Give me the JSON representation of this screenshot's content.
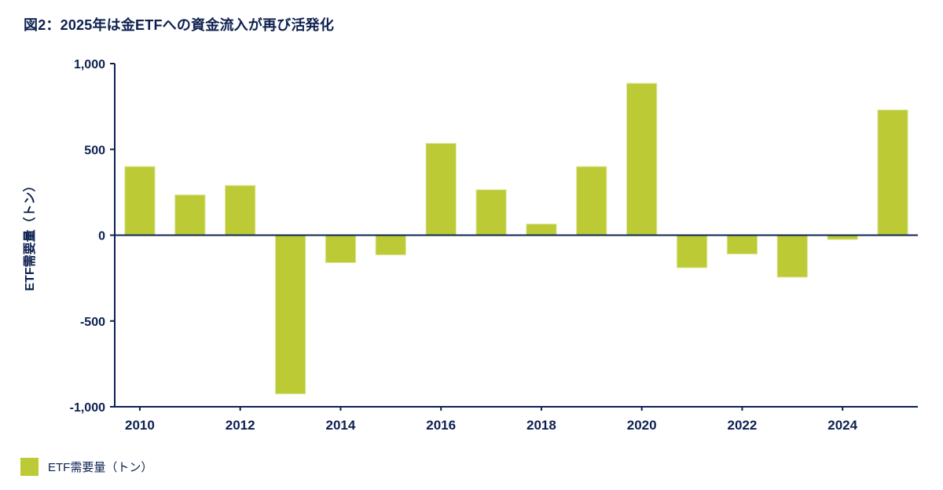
{
  "title": "図2：2025年は金ETFへの資金流入が再び活発化",
  "legend": {
    "label": "ETF需要量（トン）",
    "swatch_color": "#bcca35"
  },
  "colors": {
    "navy": "#0d2050",
    "bar_fill": "#bcca35",
    "bar_edge": "#dde8a0",
    "background": "#ffffff"
  },
  "chart_data": {
    "type": "bar",
    "title": "図2：2025年は金ETFへの資金流入が再び活発化",
    "xlabel": "",
    "ylabel": "ETF需要量（トン）",
    "categories": [
      "2010",
      "2011",
      "2012",
      "2013",
      "2014",
      "2015",
      "2016",
      "2017",
      "2018",
      "2019",
      "2020",
      "2021",
      "2022",
      "2023",
      "2024",
      "2025"
    ],
    "values": [
      400,
      235,
      290,
      -925,
      -160,
      -115,
      535,
      265,
      65,
      400,
      885,
      -190,
      -110,
      -245,
      -25,
      730
    ],
    "ylim": [
      -1000,
      1000
    ],
    "yticks": [
      1000,
      500,
      0,
      -500,
      -1000
    ],
    "ytick_labels": [
      "1,000",
      "500",
      "0",
      "-500",
      "-1,000"
    ],
    "xtick_labels": [
      "2010",
      "2012",
      "2014",
      "2016",
      "2018",
      "2020",
      "2022",
      "2024"
    ],
    "legend_entries": [
      "ETF需要量（トン）"
    ],
    "legend_position": "bottom-left",
    "grid": false,
    "bar_width_ratio": 0.6
  }
}
